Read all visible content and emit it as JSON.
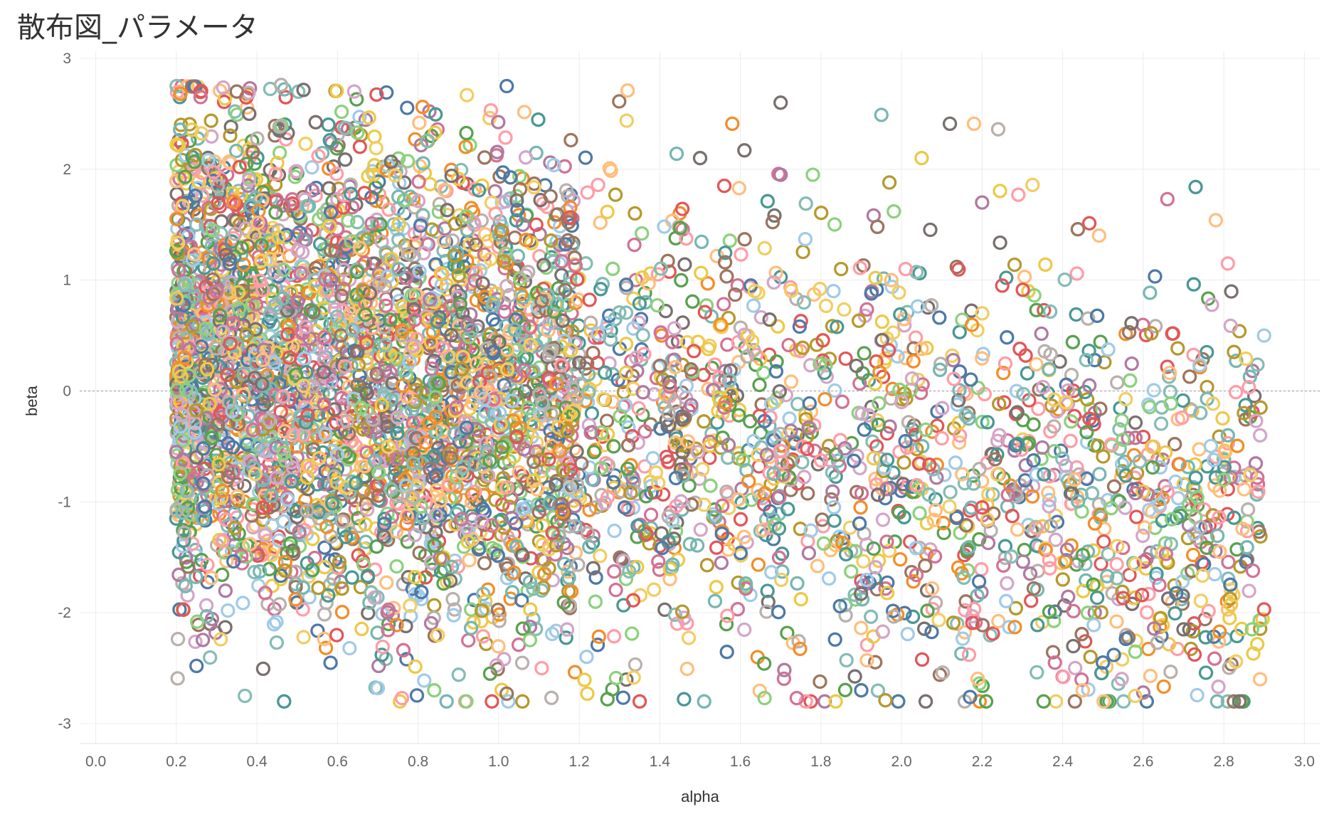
{
  "title": "散布図_パラメータ",
  "chart_data": {
    "type": "scatter",
    "xlabel": "alpha",
    "ylabel": "beta",
    "xlim": [
      -0.04,
      3.04
    ],
    "ylim": [
      -3.18,
      3.0
    ],
    "xticks": [
      "0.0",
      "0.2",
      "0.4",
      "0.6",
      "0.8",
      "1.0",
      "1.2",
      "1.4",
      "1.6",
      "1.8",
      "2.0",
      "2.2",
      "2.4",
      "2.6",
      "2.8",
      "3.0"
    ],
    "yticks": [
      "3",
      "2",
      "1",
      "0",
      "-1",
      "-2",
      "-3"
    ],
    "reference_line_y": 0,
    "marker": "hollow-circle",
    "grid": true,
    "legend": "none",
    "palette": [
      "#4e79a7",
      "#f28e2b",
      "#e15759",
      "#76b7b2",
      "#59a14f",
      "#edc948",
      "#b07aa1",
      "#ff9da7",
      "#9c755f",
      "#bab0ac",
      "#a0cbe8",
      "#ffbe7d",
      "#8cd17d",
      "#499894",
      "#86bcb6",
      "#d4a6c8",
      "#d37295",
      "#b6992d",
      "#79706e",
      "#f1ce63"
    ],
    "n_points_approx": 5000,
    "distribution": "dense cluster at alpha 0.2–1.2 spanning beta -2.8 to 2.7, thinning toward alpha 2.9; alpha minimum about 0.2, maximum about 2.9",
    "sample_points": [
      [
        0.21,
        2.68
      ],
      [
        0.26,
        2.65
      ],
      [
        0.46,
        2.76
      ],
      [
        1.02,
        2.75
      ],
      [
        1.32,
        2.71
      ],
      [
        1.7,
        2.6
      ],
      [
        1.95,
        2.49
      ],
      [
        2.12,
        2.41
      ],
      [
        2.18,
        2.41
      ],
      [
        2.24,
        2.36
      ],
      [
        1.58,
        2.41
      ],
      [
        1.5,
        2.1
      ],
      [
        2.05,
        2.1
      ],
      [
        1.29,
        1.77
      ],
      [
        2.66,
        1.73
      ],
      [
        2.73,
        1.84
      ],
      [
        2.78,
        1.54
      ],
      [
        2.81,
        1.15
      ],
      [
        2.9,
        0.5
      ],
      [
        2.88,
        -0.27
      ],
      [
        2.89,
        -0.4
      ],
      [
        2.81,
        -0.4
      ],
      [
        2.85,
        -0.2
      ],
      [
        2.8,
        -0.8
      ],
      [
        2.79,
        -1.45
      ],
      [
        2.86,
        -1.07
      ],
      [
        2.9,
        -1.97
      ],
      [
        2.89,
        -2.6
      ],
      [
        2.87,
        -2.15
      ],
      [
        2.83,
        -2.44
      ],
      [
        2.7,
        -2.15
      ],
      [
        2.6,
        -2.72
      ],
      [
        2.58,
        -2.75
      ],
      [
        2.45,
        -2.7
      ],
      [
        2.5,
        -2.45
      ],
      [
        2.21,
        -2.8
      ],
      [
        2.17,
        -2.76
      ],
      [
        2.06,
        -2.8
      ],
      [
        1.96,
        -2.79
      ],
      [
        1.9,
        -2.7
      ],
      [
        1.74,
        -2.77
      ],
      [
        1.66,
        -2.77
      ],
      [
        1.51,
        -2.8
      ],
      [
        1.46,
        -2.78
      ],
      [
        1.35,
        -2.8
      ],
      [
        1.27,
        -2.78
      ],
      [
        1.22,
        -2.73
      ],
      [
        1.02,
        -2.73
      ],
      [
        0.84,
        -2.7
      ],
      [
        0.76,
        -2.77
      ],
      [
        0.7,
        -2.68
      ],
      [
        0.37,
        -2.75
      ],
      [
        0.25,
        -2.48
      ],
      [
        0.31,
        -2.24
      ],
      [
        0.22,
        -1.28
      ],
      [
        0.2,
        -0.55
      ],
      [
        0.33,
        -0.1
      ],
      [
        0.3,
        0.9
      ],
      [
        0.25,
        1.5
      ],
      [
        0.35,
        2.7
      ],
      [
        1.85,
        1.1
      ],
      [
        2.37,
        0.33
      ],
      [
        2.62,
        0.52
      ],
      [
        2.69,
        -0.66
      ],
      [
        2.55,
        -0.44
      ],
      [
        2.58,
        -1.56
      ],
      [
        2.64,
        -1.75
      ],
      [
        2.45,
        -1.48
      ],
      [
        2.2,
        -1.05
      ],
      [
        2.0,
        -0.1
      ],
      [
        1.7,
        1.95
      ],
      [
        1.78,
        1.95
      ],
      [
        2.2,
        1.7
      ],
      [
        2.29,
        1.77
      ],
      [
        2.26,
        1.02
      ],
      [
        2.25,
        0.95
      ],
      [
        2.01,
        1.1
      ],
      [
        1.97,
        1.88
      ],
      [
        1.56,
        1.85
      ],
      [
        1.61,
        2.17
      ]
    ]
  }
}
